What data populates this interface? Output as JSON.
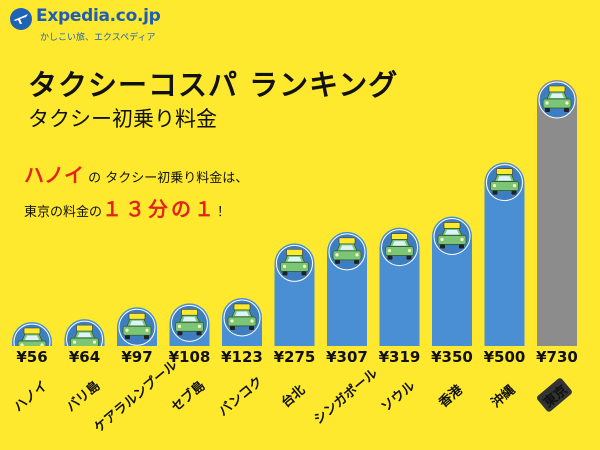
{
  "logo": {
    "brand": "Expedia.co.jp",
    "tagline": "かしこい旅、エクスペディア"
  },
  "header": {
    "title": "タクシーコスパ ランキング",
    "subtitle": "タクシー初乗り料金"
  },
  "callout": {
    "line1_highlight": "ハノイ",
    "line1_no": "の",
    "line1_rest": "タクシー初乗り料金は、",
    "line2_prefix": "東京の料金の",
    "line2_highlight": "１３分の１",
    "line2_suffix": "！"
  },
  "colors": {
    "background": "#FFE92E",
    "bar": "#4A8FD4",
    "bar_highlight": "#8C8C8C",
    "taxi_green": "#7CC576",
    "taxi_sign": "#FFE92E",
    "accent_red": "#E2231A",
    "brand_blue": "#1E5FB3"
  },
  "chart_data": {
    "type": "bar",
    "currency": "¥",
    "categories": [
      "ハノイ",
      "バリ島",
      "ケアラルンプール",
      "セブ島",
      "バンコク",
      "台北",
      "シンガポール",
      "ソウル",
      "香港",
      "沖縄",
      "東京"
    ],
    "values": [
      56,
      64,
      97,
      108,
      123,
      275,
      307,
      319,
      350,
      500,
      730
    ],
    "highlight": "東京",
    "title": "タクシー初乗り料金",
    "xlabel": "",
    "ylabel": "",
    "ylim": [
      0,
      730
    ],
    "grid": false,
    "legend": "none",
    "icon": "taxi-icon"
  }
}
